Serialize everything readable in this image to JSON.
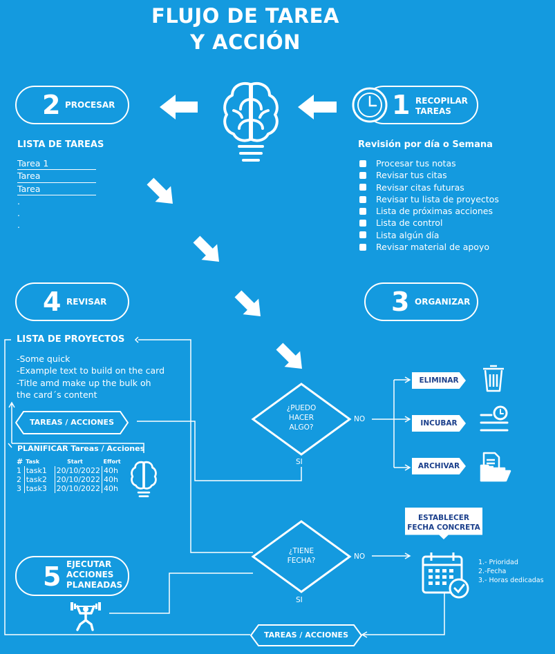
{
  "title": {
    "line1": "FLUJO DE TAREA",
    "line2": "Y ACCIÓN"
  },
  "steps": {
    "s1": {
      "num": "1",
      "label1": "RECOPILAR",
      "label2": "TAREAS"
    },
    "s2": {
      "num": "2",
      "label": "PROCESAR"
    },
    "s3": {
      "num": "3",
      "label": "ORGANIZAR"
    },
    "s4": {
      "num": "4",
      "label": "REVISAR"
    },
    "s5": {
      "num": "5",
      "label1": "EJECUTAR",
      "label2": "ACCIONES",
      "label3": "PLANEADAS"
    }
  },
  "task_list": {
    "heading": "LISTA DE TAREAS",
    "items": [
      "Tarea 1",
      "Tarea",
      "Tarea"
    ],
    "dots": [
      ".",
      ".",
      "."
    ]
  },
  "review": {
    "heading": "Revisión por día o Semana",
    "items": [
      "Procesar tus notas",
      "Revisar tus citas",
      "Revisar citas futuras",
      "Revisar tu lista de proyectos",
      "Lista de próximas acciones",
      "Lista de control",
      "Lista algún día",
      "Revisar material de apoyo"
    ]
  },
  "projects": {
    "heading": "LISTA DE PROYECTOS",
    "lines": [
      "-Some quick",
      "-Example text to build on the card",
      "-Title amd make up the bulk oh",
      "the card´s content"
    ]
  },
  "tareas_acciones_1": "TAREAS / ACCIONES",
  "tareas_acciones_2": "TAREAS / ACCIONES",
  "plan": {
    "heading": "PLANIFICAR Tareas / Acciones",
    "columns": [
      "#",
      "Task",
      "Start",
      "Effort"
    ],
    "rows": [
      [
        "1",
        "task1",
        "20/10/2022",
        "40h"
      ],
      [
        "2",
        "task2",
        "20/10/2022",
        "40h"
      ],
      [
        "3",
        "task3",
        "20/10/2022",
        "40h"
      ]
    ]
  },
  "decision1": {
    "line1": "¿PUEDO",
    "line2": "HACER",
    "line3": "ALGO?",
    "no": "NO",
    "si": "SI"
  },
  "decision2": {
    "line1": "¿TIENE",
    "line2": "FECHA?",
    "no": "NO",
    "si": "SI"
  },
  "options": {
    "eliminar": "ELIMINAR",
    "incubar": "INCUBAR",
    "archivar": "ARCHIVAR"
  },
  "date_box": {
    "line1": "ESTABLECER",
    "line2": "FECHA CONCRETA"
  },
  "priorities": [
    "1.- Prioridad",
    "2.-Fecha",
    "3.- Horas dedicadas"
  ],
  "icons": [
    "brain-bulb-icon",
    "clock-icon",
    "trash-icon",
    "incubate-clock-icon",
    "file-folder-icon",
    "calendar-check-icon",
    "weightlifter-icon",
    "small-brain-bulb-icon"
  ],
  "colors": {
    "background": "#149adf",
    "pill_text": "#1b3f8b",
    "foreground": "#ffffff"
  }
}
